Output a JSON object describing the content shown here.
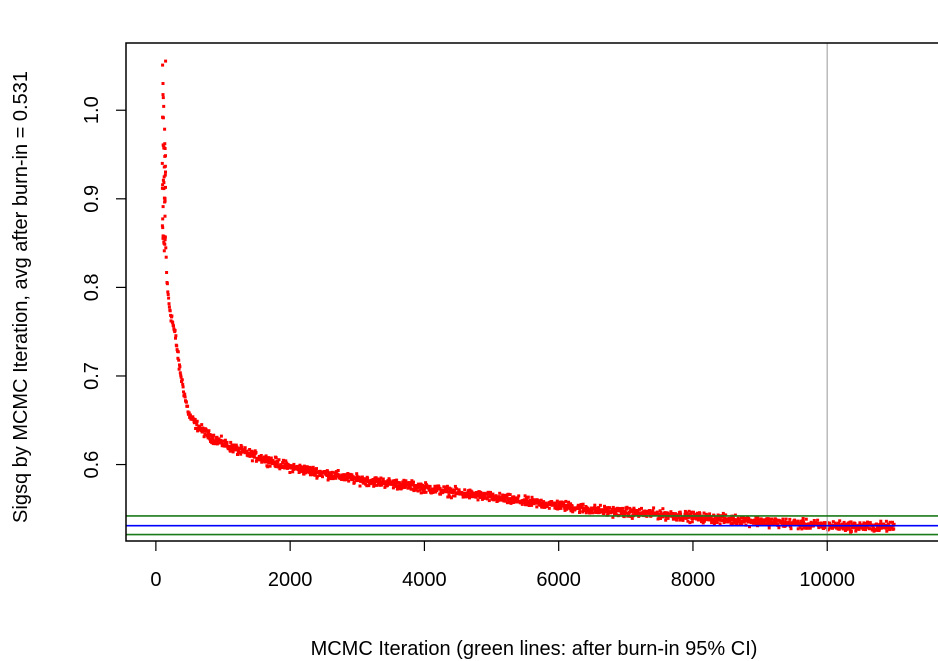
{
  "chart_data": {
    "type": "scatter",
    "title": "",
    "xlabel": "MCMC Iteration (green lines: after burn-in 95% CI)",
    "ylabel": "Sigsq by MCMC Iteration, avg after burn-in = 0.531",
    "xlim": [
      -445,
      11650
    ],
    "ylim": [
      0.5137,
      1.0759
    ],
    "x_ticks": [
      0,
      2000,
      4000,
      6000,
      8000,
      10000
    ],
    "x_tick_labels": [
      "0",
      "2000",
      "4000",
      "6000",
      "8000",
      "10000"
    ],
    "y_ticks": [
      0.6,
      0.7,
      0.8,
      0.9,
      1.0
    ],
    "y_tick_labels": [
      "0.6",
      "0.7",
      "0.8",
      "0.9",
      "1.0"
    ],
    "grid": false,
    "legend": "none",
    "series": [
      {
        "color": "#ff0000",
        "marker": "square",
        "x": [
          100,
          110,
          120,
          130,
          140,
          150,
          170,
          200,
          250,
          300,
          350,
          400,
          450,
          500,
          600,
          700,
          800,
          1000,
          1200,
          1500,
          2000,
          2500,
          3000,
          3500,
          4000,
          4500,
          5000,
          5500,
          6000,
          6500,
          7000,
          7500,
          8000,
          8500,
          9000,
          9500,
          10000,
          10500,
          11000
        ],
        "y": [
          1.05,
          1.0,
          0.94,
          0.9,
          0.86,
          0.84,
          0.8,
          0.78,
          0.76,
          0.74,
          0.71,
          0.69,
          0.67,
          0.655,
          0.645,
          0.638,
          0.632,
          0.624,
          0.617,
          0.609,
          0.597,
          0.59,
          0.583,
          0.579,
          0.574,
          0.568,
          0.563,
          0.558,
          0.554,
          0.549,
          0.546,
          0.544,
          0.541,
          0.538,
          0.536,
          0.533,
          0.531,
          0.53,
          0.53
        ],
        "spread": [
          0.015,
          0.02,
          0.02,
          0.02,
          0.02,
          0.015,
          0.012,
          0.012,
          0.012,
          0.011,
          0.01,
          0.009,
          0.008,
          0.008,
          0.008,
          0.008,
          0.008,
          0.008,
          0.008,
          0.008,
          0.008,
          0.008,
          0.008,
          0.008,
          0.008,
          0.008,
          0.008,
          0.008,
          0.008,
          0.008,
          0.008,
          0.008,
          0.008,
          0.008,
          0.008,
          0.008,
          0.008,
          0.008,
          0.008
        ]
      }
    ],
    "reference_lines": {
      "horizontal": [
        {
          "y": 0.531,
          "color": "#0000ff"
        },
        {
          "y": 0.542,
          "color": "#1a7a1a"
        },
        {
          "y": 0.521,
          "color": "#1a7a1a"
        }
      ],
      "vertical": [
        {
          "x": 10000,
          "color": "#bbbbbb"
        }
      ]
    }
  }
}
